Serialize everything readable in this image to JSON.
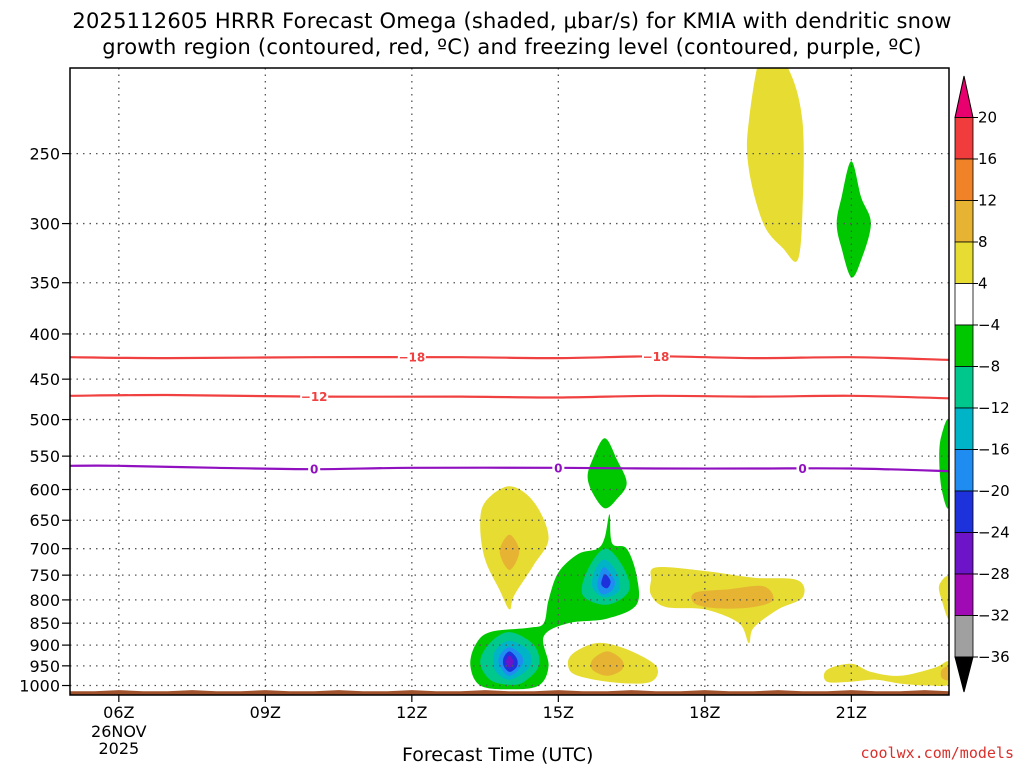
{
  "chart_data": {
    "type": "heatmap",
    "title_line1": "2025112605 HRRR Forecast Omega (shaded, μbar/s) for KMIA with dendritic snow",
    "title_line2": "growth region (contoured, red, ºC) and freezing level (contoured, purple, ºC)",
    "xlabel": "Forecast Time (UTC)",
    "credit": "coolwx.com/models",
    "x_hours": [
      6,
      9,
      12,
      15,
      18,
      21
    ],
    "x_tick_labels": [
      "06Z",
      "09Z",
      "12Z",
      "15Z",
      "18Z",
      "21Z"
    ],
    "x_first_tick_sub": [
      "26NOV",
      "2025"
    ],
    "xlim": [
      5,
      23
    ],
    "y_levels": [
      250,
      300,
      350,
      400,
      450,
      500,
      550,
      600,
      650,
      700,
      750,
      800,
      850,
      900,
      950,
      1000
    ],
    "y_tick_labels": [
      "250",
      "300",
      "350",
      "400",
      "450",
      "500",
      "550",
      "600",
      "650",
      "700",
      "750",
      "800",
      "850",
      "900",
      "950",
      "1000"
    ],
    "ylim": [
      200,
      1025
    ],
    "colorbar": {
      "labels": [
        "20",
        "16",
        "12",
        "8",
        "4",
        "−4",
        "−8",
        "−12",
        "−16",
        "−20",
        "−24",
        "−28",
        "−32",
        "−36"
      ],
      "colors": [
        "#e8006e",
        "#f03c3c",
        "#f08228",
        "#e6b432",
        "#e6dc32",
        "#ffffff",
        "#00c800",
        "#00c88c",
        "#00b4c8",
        "#1e8cf0",
        "#1e32dc",
        "#6e14c8",
        "#a00ab4",
        "#a0a0a0",
        "#000000"
      ]
    },
    "contours": [
      {
        "name": "-18",
        "color": "#f04040",
        "labels": [
          "−18",
          "−18"
        ],
        "label_hours": [
          12,
          17
        ],
        "hours": [
          5,
          7,
          10,
          13,
          15,
          17,
          19,
          21,
          23
        ],
        "pressures": [
          425,
          426,
          425,
          425,
          426,
          424,
          426,
          425,
          428
        ]
      },
      {
        "name": "-12",
        "color": "#f04040",
        "labels": [
          "−12"
        ],
        "label_hours": [
          10
        ],
        "hours": [
          5,
          7,
          10,
          13,
          15,
          17,
          19,
          21,
          23
        ],
        "pressures": [
          470,
          469,
          471,
          471,
          472,
          470,
          471,
          470,
          473
        ]
      },
      {
        "name": "0",
        "color": "#9010c0",
        "labels": [
          "0",
          "0",
          "0"
        ],
        "label_hours": [
          10,
          15,
          20
        ],
        "hours": [
          5,
          6,
          8,
          10,
          12,
          15,
          17,
          19,
          21,
          23
        ],
        "pressures": [
          564,
          564,
          567,
          569,
          567,
          567,
          568,
          568,
          568,
          572
        ]
      }
    ],
    "omega_blobs": [
      {
        "name": "upward-yellow-19z-250",
        "value_band": "4 to 8",
        "fill": "#e6dc32",
        "points": [
          [
            19.2,
            190
          ],
          [
            19.7,
            200
          ],
          [
            20.0,
            230
          ],
          [
            20.0,
            290
          ],
          [
            19.9,
            330
          ],
          [
            19.6,
            320
          ],
          [
            19.2,
            300
          ],
          [
            18.9,
            260
          ],
          [
            18.9,
            230
          ]
        ]
      },
      {
        "name": "downward-green-21z-300",
        "value_band": "-4 to -8",
        "fill": "#00c800",
        "points": [
          [
            21.0,
            255
          ],
          [
            21.2,
            280
          ],
          [
            21.4,
            300
          ],
          [
            21.2,
            330
          ],
          [
            21.0,
            345
          ],
          [
            20.8,
            320
          ],
          [
            20.7,
            300
          ],
          [
            20.8,
            280
          ]
        ]
      },
      {
        "name": "upward-yellow-14z-700",
        "value_band": "4 to 8",
        "fill": "#e6dc32",
        "points": [
          [
            14.0,
            595
          ],
          [
            14.5,
            620
          ],
          [
            14.8,
            680
          ],
          [
            14.5,
            730
          ],
          [
            14.1,
            790
          ],
          [
            14.0,
            820
          ],
          [
            13.8,
            780
          ],
          [
            13.5,
            720
          ],
          [
            13.4,
            660
          ],
          [
            13.5,
            620
          ]
        ]
      },
      {
        "name": "upward-orange-14z-700",
        "value_band": "8 to 12",
        "fill": "#e6b432",
        "points": [
          [
            14.0,
            675
          ],
          [
            14.2,
            705
          ],
          [
            14.0,
            740
          ],
          [
            13.8,
            705
          ]
        ]
      },
      {
        "name": "downward-green-16z-580",
        "value_band": "-4 to -8",
        "fill": "#00c800",
        "points": [
          [
            15.95,
            525
          ],
          [
            16.2,
            555
          ],
          [
            16.4,
            590
          ],
          [
            16.2,
            615
          ],
          [
            15.95,
            630
          ],
          [
            15.7,
            605
          ],
          [
            15.6,
            580
          ],
          [
            15.7,
            555
          ]
        ]
      },
      {
        "name": "downward-green-main",
        "value_band": "-4 to -8",
        "fill": "#00c800",
        "points": [
          [
            16.05,
            640
          ],
          [
            16.1,
            690
          ],
          [
            16.4,
            700
          ],
          [
            16.6,
            750
          ],
          [
            16.6,
            810
          ],
          [
            16.0,
            840
          ],
          [
            15.2,
            850
          ],
          [
            14.7,
            880
          ],
          [
            14.8,
            950
          ],
          [
            14.6,
            1000
          ],
          [
            14.0,
            1010
          ],
          [
            13.4,
            1000
          ],
          [
            13.2,
            950
          ],
          [
            13.3,
            900
          ],
          [
            13.6,
            870
          ],
          [
            14.4,
            860
          ],
          [
            14.7,
            850
          ],
          [
            14.8,
            800
          ],
          [
            15.0,
            745
          ],
          [
            15.4,
            710
          ],
          [
            15.8,
            700
          ],
          [
            15.95,
            680
          ]
        ]
      },
      {
        "name": "downward-teal-16z",
        "value_band": "-8 to -12",
        "fill": "#00c88c",
        "points": [
          [
            15.95,
            700
          ],
          [
            16.3,
            730
          ],
          [
            16.45,
            780
          ],
          [
            16.0,
            810
          ],
          [
            15.5,
            790
          ],
          [
            15.6,
            740
          ]
        ]
      },
      {
        "name": "downward-cyan-16z",
        "value_band": "-12 to -16",
        "fill": "#00b4c8",
        "points": [
          [
            15.95,
            720
          ],
          [
            16.2,
            745
          ],
          [
            16.25,
            780
          ],
          [
            15.95,
            795
          ],
          [
            15.7,
            775
          ],
          [
            15.75,
            740
          ]
        ]
      },
      {
        "name": "downward-lightblue-16z",
        "value_band": "-16 to -20",
        "fill": "#1e8cf0",
        "points": [
          [
            15.95,
            735
          ],
          [
            16.15,
            760
          ],
          [
            16.1,
            780
          ],
          [
            15.9,
            788
          ],
          [
            15.8,
            770
          ],
          [
            15.85,
            748
          ]
        ]
      },
      {
        "name": "downward-blue-16z",
        "value_band": "-20 to -24",
        "fill": "#1e32dc",
        "points": [
          [
            15.95,
            748
          ],
          [
            16.07,
            762
          ],
          [
            16.0,
            776
          ],
          [
            15.88,
            768
          ]
        ]
      },
      {
        "name": "downward-teal-14z",
        "value_band": "-8 to -12",
        "fill": "#00c88c",
        "points": [
          [
            14.0,
            870
          ],
          [
            14.5,
            900
          ],
          [
            14.6,
            950
          ],
          [
            14.3,
            990
          ],
          [
            14.0,
            998
          ],
          [
            13.6,
            985
          ],
          [
            13.4,
            940
          ],
          [
            13.6,
            895
          ]
        ]
      },
      {
        "name": "downward-cyan-14z",
        "value_band": "-12 to -16",
        "fill": "#00b4c8",
        "points": [
          [
            14.0,
            890
          ],
          [
            14.4,
            915
          ],
          [
            14.4,
            955
          ],
          [
            14.0,
            985
          ],
          [
            13.7,
            960
          ],
          [
            13.7,
            915
          ]
        ]
      },
      {
        "name": "downward-lightblue-14z",
        "value_band": "-16 to -20",
        "fill": "#1e8cf0",
        "points": [
          [
            14.0,
            905
          ],
          [
            14.25,
            925
          ],
          [
            14.25,
            950
          ],
          [
            14.0,
            975
          ],
          [
            13.8,
            950
          ],
          [
            13.8,
            925
          ]
        ]
      },
      {
        "name": "downward-blue-14z",
        "value_band": "-20 to -24",
        "fill": "#1e32dc",
        "points": [
          [
            14.0,
            915
          ],
          [
            14.15,
            932
          ],
          [
            14.15,
            952
          ],
          [
            14.0,
            965
          ],
          [
            13.88,
            950
          ],
          [
            13.88,
            930
          ]
        ]
      },
      {
        "name": "downward-purple-14z",
        "value_band": "-24 to -28",
        "fill": "#6e14c8",
        "points": [
          [
            14.0,
            925
          ],
          [
            14.08,
            940
          ],
          [
            14.0,
            955
          ],
          [
            13.93,
            940
          ]
        ]
      },
      {
        "name": "upward-yellow-16z-950",
        "value_band": "4 to 8",
        "fill": "#e6dc32",
        "points": [
          [
            15.8,
            895
          ],
          [
            16.4,
            910
          ],
          [
            17.0,
            950
          ],
          [
            16.9,
            990
          ],
          [
            16.2,
            993
          ],
          [
            15.4,
            975
          ],
          [
            15.2,
            950
          ],
          [
            15.3,
            920
          ]
        ]
      },
      {
        "name": "upward-orange-16z-950",
        "value_band": "8 to 12",
        "fill": "#e6b432",
        "points": [
          [
            16.0,
            915
          ],
          [
            16.3,
            935
          ],
          [
            16.3,
            960
          ],
          [
            16.0,
            975
          ],
          [
            15.7,
            960
          ],
          [
            15.7,
            935
          ]
        ]
      },
      {
        "name": "upward-yellow-19z-790",
        "value_band": "4 to 8",
        "fill": "#e6dc32",
        "points": [
          [
            17.0,
            735
          ],
          [
            18.0,
            742
          ],
          [
            19.0,
            755
          ],
          [
            19.9,
            760
          ],
          [
            20.0,
            795
          ],
          [
            19.5,
            820
          ],
          [
            19.0,
            860
          ],
          [
            18.9,
            895
          ],
          [
            18.7,
            850
          ],
          [
            18.0,
            820
          ],
          [
            17.2,
            815
          ],
          [
            16.9,
            790
          ],
          [
            16.9,
            760
          ]
        ]
      },
      {
        "name": "upward-orange-19z-790",
        "value_band": "8 to 12",
        "fill": "#e6b432",
        "points": [
          [
            17.8,
            785
          ],
          [
            18.5,
            778
          ],
          [
            19.2,
            772
          ],
          [
            19.4,
            800
          ],
          [
            19.0,
            815
          ],
          [
            18.3,
            818
          ],
          [
            17.8,
            808
          ]
        ]
      },
      {
        "name": "upward-yellow-22z-975",
        "value_band": "4 to 8",
        "fill": "#e6dc32",
        "points": [
          [
            20.5,
            960
          ],
          [
            21.0,
            945
          ],
          [
            21.4,
            965
          ],
          [
            22.0,
            975
          ],
          [
            22.7,
            955
          ],
          [
            23.0,
            940
          ],
          [
            23.0,
            995
          ],
          [
            22.6,
            1000
          ],
          [
            22.0,
            995
          ],
          [
            21.5,
            985
          ],
          [
            21.0,
            990
          ],
          [
            20.5,
            990
          ]
        ]
      },
      {
        "name": "upward-orange-23z-975",
        "value_band": "8 to 12",
        "fill": "#e6b432",
        "points": [
          [
            22.85,
            960
          ],
          [
            23.0,
            952
          ],
          [
            23.0,
            985
          ],
          [
            22.85,
            980
          ]
        ]
      },
      {
        "name": "upward-yellow-23z-780",
        "value_band": "4 to 8",
        "fill": "#e6dc32",
        "points": [
          [
            23.0,
            755
          ],
          [
            23.0,
            840
          ],
          [
            22.85,
            800
          ],
          [
            22.8,
            770
          ]
        ]
      },
      {
        "name": "downward-green-23z-550",
        "value_band": "-4 to -8",
        "fill": "#00c800",
        "points": [
          [
            23.0,
            505
          ],
          [
            23.0,
            625
          ],
          [
            22.85,
            600
          ],
          [
            22.8,
            550
          ],
          [
            22.85,
            520
          ]
        ]
      }
    ],
    "terrain": {
      "fill": "#a0522d",
      "top_pressure": 1012
    }
  }
}
